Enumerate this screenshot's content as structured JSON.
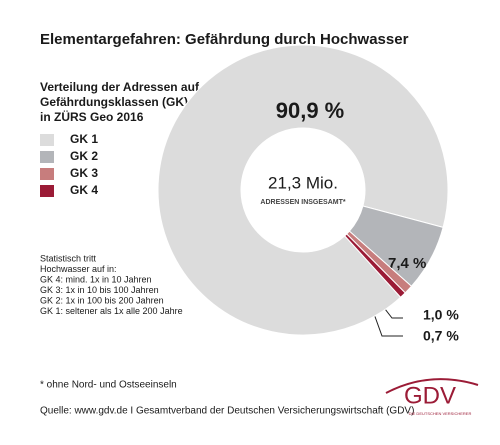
{
  "chart_data": {
    "type": "donut",
    "title": "Elementargefahren: Gefährdung durch Hochwasser",
    "subtitle": [
      "Verteilung der Adressen auf die",
      "Gefährdungsklassen (GK)",
      "in ZÜRS Geo 2016"
    ],
    "categories": [
      "GK 1",
      "GK 2",
      "GK 3",
      "GK 4"
    ],
    "values": [
      90.9,
      7.4,
      1.0,
      0.7
    ],
    "value_labels": [
      "90,9 %",
      "7,4 %",
      "1,0 %",
      "0,7 %"
    ],
    "colors": [
      "#dcdcdc",
      "#b3b5b9",
      "#c77d7d",
      "#9b1b36"
    ],
    "center_label": "21,3 Mio.",
    "center_sublabel": "ADRESSEN INSGESAMT*",
    "annotations": [
      "Statistisch tritt",
      "Hochwasser auf in:",
      "GK 4: mind. 1x in 10 Jahren",
      "GK 3: 1x in 10 bis 100 Jahren",
      "GK 2: 1x in 100 bis 200 Jahren",
      "GK 1: seltener als 1x alle 200 Jahre"
    ],
    "footnote": "* ohne Nord- und Ostseeinseln",
    "source": "Quelle: www.gdv.de I Gesamtverband der Deutschen Versicherungswirtschaft (GDV)"
  },
  "logo": {
    "text": "GDV",
    "tagline": "DIE DEUTSCHEN VERSICHERER"
  }
}
